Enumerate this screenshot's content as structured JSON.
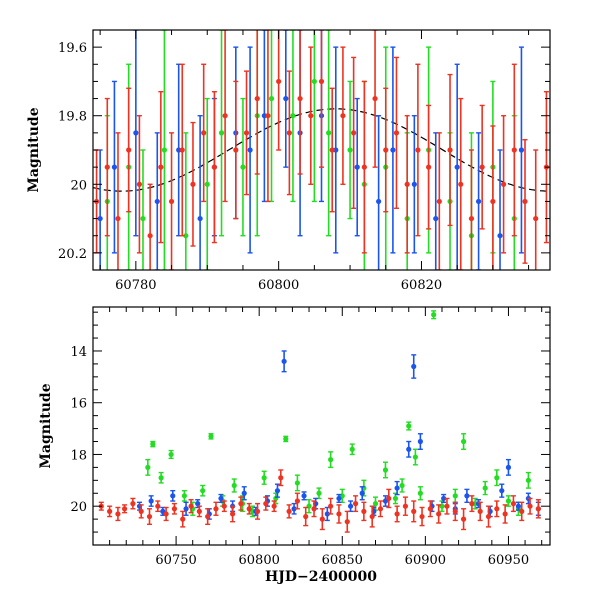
{
  "chart_data": [
    {
      "type": "scatter",
      "panel": "top",
      "title": "",
      "xlabel": "",
      "ylabel": "Magnitude",
      "xlim": [
        60774,
        60838
      ],
      "ylim": [
        20.25,
        19.55
      ],
      "y_inverted": true,
      "xticks": [
        60780,
        60800,
        60820
      ],
      "yticks": [
        19.6,
        19.8,
        20,
        20.2
      ],
      "ytick_labels": [
        "19.6",
        "19.8",
        "20",
        "20.2"
      ],
      "grid": false,
      "legend": "none",
      "series": [
        {
          "name": "green",
          "color": "#22dd22",
          "x": [
            60776,
            60779,
            60781,
            60784,
            60787,
            60790,
            60792,
            60795,
            60797,
            60799,
            60802,
            60805,
            60807,
            60810,
            60812,
            60815,
            60818,
            60821,
            60824,
            60827,
            60830,
            60833
          ],
          "y": [
            20.05,
            19.95,
            20.1,
            19.9,
            20.15,
            20.0,
            19.85,
            19.95,
            19.8,
            19.75,
            19.8,
            19.7,
            19.85,
            19.9,
            20.0,
            19.95,
            20.1,
            19.9,
            20.05,
            20.15,
            19.95,
            20.1
          ],
          "err": [
            0.25,
            0.3,
            0.2,
            0.35,
            0.3,
            0.25,
            0.3,
            0.2,
            0.35,
            0.3,
            0.25,
            0.35,
            0.3,
            0.2,
            0.3,
            0.35,
            0.25,
            0.3,
            0.2,
            0.3,
            0.25,
            0.3
          ]
        },
        {
          "name": "blue",
          "color": "#1a55ee",
          "x": [
            60775,
            60777,
            60780,
            60783,
            60786,
            60789,
            60791,
            60794,
            60796,
            60798,
            60801,
            60803,
            60806,
            60808,
            60811,
            60814,
            60816,
            60819,
            60822,
            60825,
            60828,
            60831,
            60834
          ],
          "y": [
            20.1,
            19.95,
            19.85,
            20.05,
            19.9,
            20.1,
            19.95,
            19.85,
            19.9,
            19.8,
            19.75,
            19.85,
            19.8,
            19.9,
            19.95,
            20.05,
            19.9,
            20.0,
            20.1,
            19.95,
            20.05,
            20.15,
            19.9
          ],
          "err": [
            0.2,
            0.25,
            0.3,
            0.2,
            0.25,
            0.3,
            0.2,
            0.25,
            0.3,
            0.25,
            0.2,
            0.3,
            0.25,
            0.3,
            0.2,
            0.25,
            0.3,
            0.2,
            0.25,
            0.3,
            0.2,
            0.25,
            0.3
          ]
        },
        {
          "name": "red",
          "color": "#ee3322",
          "x": [
            60774.5,
            60776,
            60777.5,
            60779,
            60780.5,
            60782,
            60783.5,
            60785,
            60786.5,
            60788,
            60789.5,
            60791,
            60792.5,
            60794,
            60795.5,
            60797,
            60798.5,
            60800,
            60801.5,
            60803,
            60804.5,
            60806,
            60807.5,
            60809,
            60810.5,
            60812,
            60813.5,
            60815,
            60816.5,
            60818,
            60819.5,
            60821,
            60822.5,
            60824,
            60825.5,
            60827,
            60828.5,
            60830,
            60831.5,
            60833,
            60834.5,
            60836,
            60837.5
          ],
          "y": [
            20.05,
            19.95,
            20.1,
            19.9,
            20.0,
            20.15,
            19.95,
            20.05,
            19.9,
            20.0,
            19.85,
            19.95,
            19.8,
            19.9,
            19.85,
            19.75,
            19.8,
            19.7,
            19.85,
            19.75,
            19.8,
            19.7,
            19.9,
            19.8,
            19.85,
            19.95,
            19.75,
            19.9,
            19.85,
            20.0,
            19.9,
            19.95,
            20.05,
            19.9,
            20.0,
            20.1,
            19.95,
            20.05,
            20.0,
            19.9,
            20.05,
            20.1,
            19.95
          ],
          "err": [
            0.15,
            0.2,
            0.25,
            0.18,
            0.2,
            0.15,
            0.22,
            0.2,
            0.25,
            0.18,
            0.2,
            0.22,
            0.25,
            0.2,
            0.18,
            0.22,
            0.25,
            0.2,
            0.18,
            0.22,
            0.2,
            0.25,
            0.18,
            0.2,
            0.22,
            0.25,
            0.2,
            0.18,
            0.22,
            0.2,
            0.25,
            0.18,
            0.2,
            0.22,
            0.25,
            0.2,
            0.18,
            0.22,
            0.2,
            0.25,
            0.18,
            0.2,
            0.22
          ]
        }
      ],
      "model_curve": {
        "type": "sinusoid",
        "color": "#000000",
        "mean": 19.9,
        "amplitude": 0.12,
        "peak_x": 60808,
        "period": 60
      }
    },
    {
      "type": "scatter",
      "panel": "bottom",
      "title": "",
      "xlabel": "HJD−2400000",
      "ylabel": "Magnitude",
      "xlim": [
        60700,
        60975
      ],
      "ylim": [
        21.5,
        12.3
      ],
      "y_inverted": true,
      "xticks": [
        60750,
        60800,
        60850,
        60900,
        60950
      ],
      "yticks": [
        14,
        16,
        18,
        20
      ],
      "grid": false,
      "legend": "none",
      "series": [
        {
          "name": "green",
          "color": "#22dd22",
          "x": [
            60733,
            60736,
            60741,
            60747,
            60755,
            60760,
            60766,
            60771,
            60778,
            60785,
            60790,
            60796,
            60803,
            60810,
            60816,
            60823,
            60830,
            60836,
            60843,
            60850,
            60856,
            60863,
            60870,
            60876,
            60882,
            60886,
            60890,
            60894,
            60897,
            60905,
            60910,
            60918,
            60923,
            60930,
            60936,
            60943,
            60950,
            60956,
            60962
          ],
          "y": [
            18.5,
            17.6,
            18.9,
            18.0,
            19.6,
            20.1,
            19.4,
            17.3,
            19.8,
            19.2,
            19.9,
            20.2,
            18.9,
            19.7,
            17.4,
            19.1,
            20.0,
            19.5,
            18.2,
            19.6,
            17.8,
            19.3,
            19.9,
            18.6,
            19.7,
            19.2,
            16.9,
            18.1,
            19.5,
            12.6,
            20.0,
            19.6,
            17.5,
            19.9,
            19.3,
            18.9,
            19.8,
            20.1,
            19.0
          ],
          "err": [
            0.3,
            0.1,
            0.2,
            0.15,
            0.2,
            0.25,
            0.2,
            0.1,
            0.2,
            0.25,
            0.3,
            0.2,
            0.25,
            0.2,
            0.1,
            0.3,
            0.25,
            0.2,
            0.3,
            0.25,
            0.2,
            0.3,
            0.25,
            0.3,
            0.2,
            0.25,
            0.15,
            0.3,
            0.25,
            0.15,
            0.2,
            0.25,
            0.3,
            0.2,
            0.25,
            0.3,
            0.2,
            0.25,
            0.3
          ]
        },
        {
          "name": "blue",
          "color": "#1a55ee",
          "x": [
            60728,
            60735,
            60742,
            60748,
            60756,
            60763,
            60770,
            60777,
            60784,
            60791,
            60798,
            60805,
            60811,
            60815,
            60821,
            60827,
            60834,
            60841,
            60848,
            60855,
            60862,
            60869,
            60876,
            60883,
            60890,
            60893,
            60897,
            60904,
            60911,
            60918,
            60925,
            60932,
            60939,
            60946,
            60950,
            60956,
            60962,
            60968
          ],
          "y": [
            20.0,
            19.8,
            20.2,
            19.6,
            20.1,
            19.9,
            20.3,
            19.7,
            20.0,
            19.5,
            20.2,
            19.8,
            19.4,
            14.4,
            20.1,
            19.6,
            19.9,
            20.3,
            19.7,
            20.0,
            19.5,
            20.2,
            19.8,
            19.3,
            17.8,
            14.6,
            17.5,
            20.0,
            19.7,
            20.1,
            19.6,
            19.9,
            20.2,
            19.4,
            18.5,
            20.0,
            19.7,
            20.1
          ],
          "err": [
            0.15,
            0.2,
            0.15,
            0.2,
            0.25,
            0.15,
            0.2,
            0.15,
            0.2,
            0.25,
            0.15,
            0.2,
            0.25,
            0.4,
            0.2,
            0.15,
            0.2,
            0.25,
            0.15,
            0.2,
            0.25,
            0.15,
            0.2,
            0.25,
            0.3,
            0.45,
            0.3,
            0.2,
            0.15,
            0.2,
            0.25,
            0.15,
            0.2,
            0.25,
            0.3,
            0.15,
            0.2,
            0.25
          ]
        },
        {
          "name": "red",
          "color": "#ee3322",
          "x": [
            60705,
            60710,
            60715,
            60719,
            60724,
            60729,
            60734,
            60739,
            60744,
            60749,
            60754,
            60759,
            60764,
            60769,
            60774,
            60779,
            60784,
            60789,
            60794,
            60799,
            60804,
            60809,
            60813,
            60818,
            60823,
            60828,
            60833,
            60838,
            60843,
            60848,
            60853,
            60858,
            60863,
            60868,
            60873,
            60878,
            60883,
            60888,
            60893,
            60898,
            60903,
            60908,
            60913,
            60918,
            60923,
            60928,
            60933,
            60938,
            60943,
            60948,
            60953,
            60958,
            60963,
            60968
          ],
          "y": [
            20.0,
            20.2,
            20.3,
            20.1,
            19.9,
            20.2,
            20.4,
            20.0,
            20.3,
            20.1,
            20.5,
            20.0,
            20.2,
            20.4,
            20.1,
            20.0,
            20.3,
            19.9,
            20.1,
            20.2,
            19.9,
            20.0,
            18.9,
            20.2,
            19.8,
            20.4,
            20.1,
            20.5,
            20.0,
            20.3,
            20.6,
            19.9,
            20.2,
            20.4,
            20.1,
            19.7,
            20.3,
            20.0,
            20.2,
            20.4,
            20.1,
            20.3,
            20.0,
            20.2,
            20.5,
            19.9,
            20.2,
            20.4,
            20.1,
            20.3,
            19.9,
            20.2,
            20.0,
            20.1
          ],
          "err": [
            0.15,
            0.2,
            0.25,
            0.15,
            0.2,
            0.25,
            0.3,
            0.2,
            0.25,
            0.2,
            0.3,
            0.25,
            0.2,
            0.3,
            0.25,
            0.2,
            0.3,
            0.25,
            0.2,
            0.3,
            0.25,
            0.2,
            0.3,
            0.25,
            0.3,
            0.35,
            0.3,
            0.4,
            0.3,
            0.35,
            0.4,
            0.3,
            0.35,
            0.4,
            0.3,
            0.35,
            0.3,
            0.35,
            0.4,
            0.35,
            0.3,
            0.35,
            0.3,
            0.35,
            0.4,
            0.3,
            0.35,
            0.4,
            0.3,
            0.35,
            0.3,
            0.35,
            0.3,
            0.35
          ]
        }
      ]
    }
  ]
}
